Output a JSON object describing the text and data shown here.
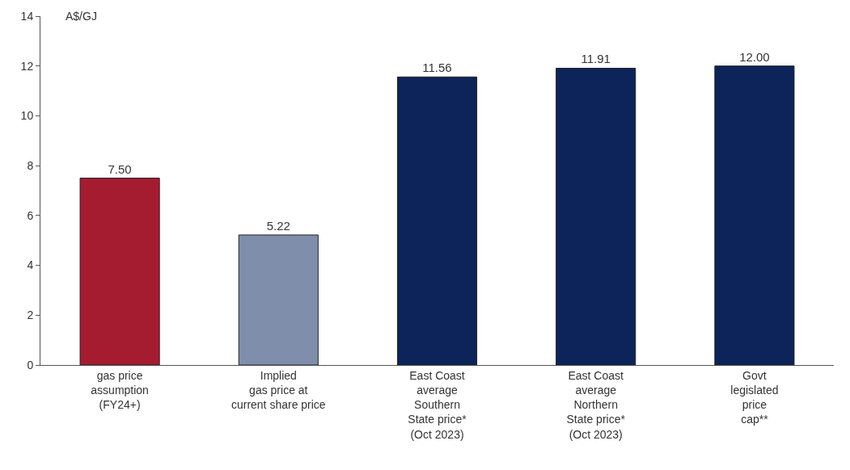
{
  "chart_data": {
    "type": "bar",
    "ylabel": "A$/GJ",
    "categories": [
      "gas price\nassumption\n(FY24+)",
      "Implied\ngas price at\ncurrent share price",
      "East Coast\naverage\nSouthern\nState price*\n(Oct 2023)",
      "East Coast\naverage\nNorthern\nState price*\n(Oct 2023)",
      "Govt\nlegislated\nprice\ncap**"
    ],
    "values": [
      7.5,
      5.22,
      11.56,
      11.91,
      12.0
    ],
    "colors": [
      "#a51c30",
      "#7f8fab",
      "#0c2459",
      "#0c2459",
      "#0c2459"
    ],
    "value_labels": [
      "7.50",
      "5.22",
      "11.56",
      "11.91",
      "12.00"
    ],
    "ylim": [
      0,
      14
    ],
    "yticks": [
      0,
      2,
      4,
      6,
      8,
      10,
      12,
      14
    ]
  }
}
